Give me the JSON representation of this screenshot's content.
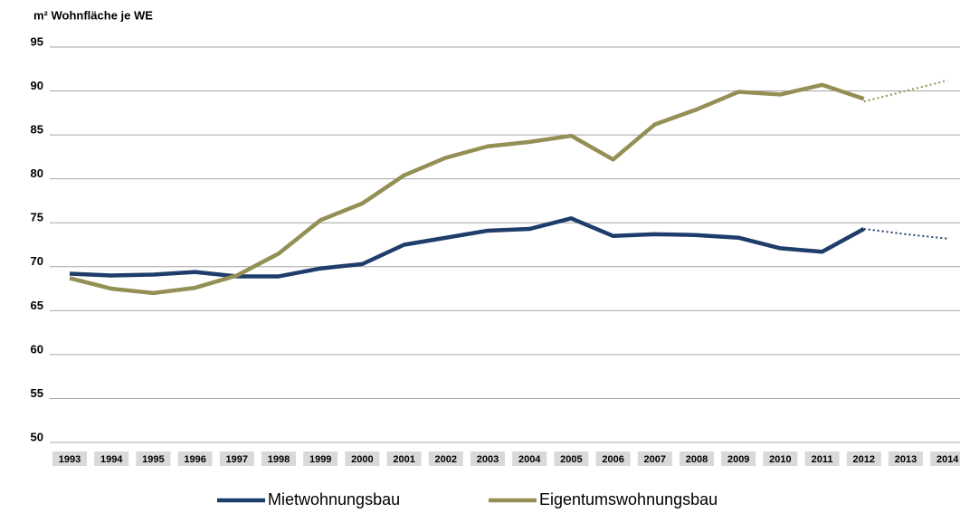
{
  "chart_data": {
    "type": "line",
    "y_axis_label": "m² Wohnfläche je WE",
    "categories": [
      "1993",
      "1994",
      "1995",
      "1996",
      "1997",
      "1998",
      "1999",
      "2000",
      "2001",
      "2002",
      "2003",
      "2004",
      "2005",
      "2006",
      "2007",
      "2008",
      "2009",
      "2010",
      "2011",
      "2012",
      "2013",
      "2014"
    ],
    "series": [
      {
        "name": "Mietwohnungsbau",
        "color": "#1f3d6b",
        "values": [
          69.2,
          69.0,
          69.1,
          69.4,
          68.9,
          68.9,
          69.8,
          70.3,
          72.5,
          73.3,
          74.1,
          74.3,
          75.5,
          73.5,
          73.7,
          73.6,
          73.3,
          72.1,
          71.7,
          74.3,
          null,
          null
        ],
        "trend_values": [
          null,
          null,
          null,
          null,
          null,
          null,
          null,
          null,
          null,
          null,
          null,
          null,
          null,
          null,
          null,
          null,
          null,
          null,
          null,
          74.3,
          73.7,
          73.2
        ]
      },
      {
        "name": "Eigentumswohnungsbau",
        "color": "#948f55",
        "values": [
          68.7,
          67.5,
          67.0,
          67.6,
          69.0,
          71.5,
          75.3,
          77.2,
          80.4,
          82.4,
          83.7,
          84.2,
          84.9,
          82.2,
          86.2,
          87.9,
          89.9,
          89.6,
          90.7,
          89.1,
          null,
          null
        ],
        "trend_values": [
          null,
          null,
          null,
          null,
          null,
          null,
          null,
          null,
          null,
          null,
          null,
          null,
          null,
          null,
          null,
          null,
          null,
          null,
          null,
          88.8,
          90.0,
          91.2
        ]
      }
    ],
    "ylim": [
      50,
      95
    ],
    "yticks": [
      50,
      55,
      60,
      65,
      70,
      75,
      80,
      85,
      90,
      95
    ],
    "grid": true,
    "legend": "bottom"
  }
}
